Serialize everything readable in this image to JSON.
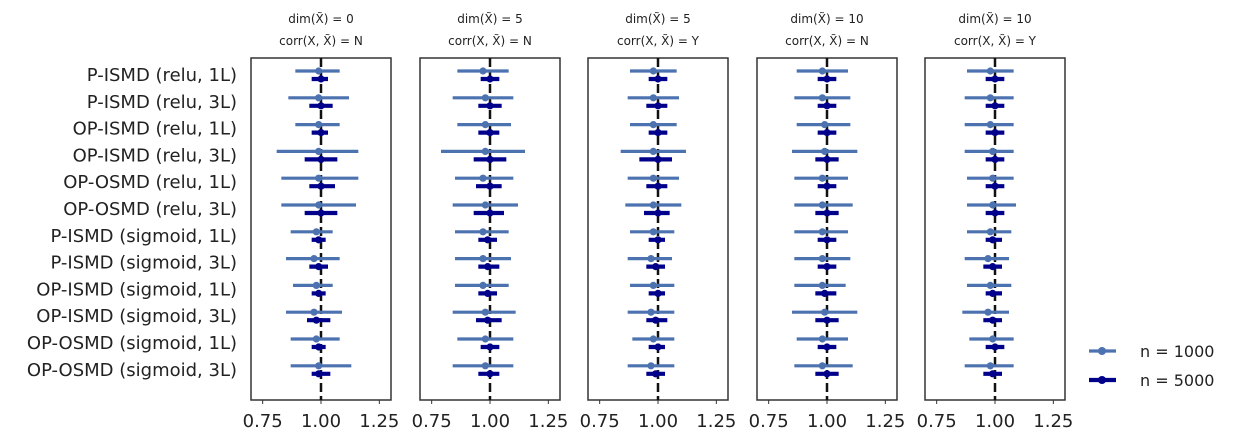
{
  "chart_data": {
    "type": "errorbar",
    "categories": [
      "P-ISMD (relu, 1L)",
      "P-ISMD (relu, 3L)",
      "OP-ISMD (relu, 1L)",
      "OP-ISMD (relu, 3L)",
      "OP-OSMD (relu, 1L)",
      "OP-OSMD (relu, 3L)",
      "P-ISMD (sigmoid, 1L)",
      "P-ISMD (sigmoid, 3L)",
      "OP-ISMD (sigmoid, 1L)",
      "OP-ISMD (sigmoid, 3L)",
      "OP-OSMD (sigmoid, 1L)",
      "OP-OSMD (sigmoid, 3L)"
    ],
    "x_ticks": [
      "0.75",
      "1.00",
      "1.25"
    ],
    "xlim": [
      0.7,
      1.3
    ],
    "reference_line": 1.0,
    "legend": {
      "placement": "right",
      "entries": [
        {
          "label": "n = 1000",
          "color": "#4c72b0"
        },
        {
          "label": "n = 5000",
          "color": "#00008b"
        }
      ]
    },
    "panels": [
      {
        "title_line1": "dim(X̃) = 0",
        "title_line2": "corr(X, X̃) = N",
        "series": [
          {
            "name": "n = 1000",
            "color": "#4c72b0",
            "mean": [
              0.99,
              0.99,
              0.99,
              0.99,
              0.99,
              0.99,
              0.98,
              0.97,
              0.98,
              0.97,
              0.98,
              0.99
            ],
            "low": [
              0.89,
              0.86,
              0.89,
              0.81,
              0.83,
              0.83,
              0.87,
              0.85,
              0.88,
              0.85,
              0.87,
              0.87
            ],
            "high": [
              1.08,
              1.12,
              1.08,
              1.16,
              1.16,
              1.15,
              1.05,
              1.08,
              1.05,
              1.09,
              1.08,
              1.13
            ]
          },
          {
            "name": "n = 5000",
            "color": "#00008b",
            "mean": [
              1.0,
              1.0,
              1.0,
              1.0,
              1.0,
              1.0,
              0.99,
              0.99,
              0.99,
              0.98,
              0.99,
              0.99
            ],
            "low": [
              0.96,
              0.95,
              0.96,
              0.93,
              0.95,
              0.93,
              0.96,
              0.95,
              0.96,
              0.94,
              0.96,
              0.96
            ],
            "high": [
              1.03,
              1.05,
              1.03,
              1.07,
              1.06,
              1.07,
              1.02,
              1.03,
              1.02,
              1.04,
              1.02,
              1.04
            ]
          }
        ]
      },
      {
        "title_line1": "dim(X̃) = 5",
        "title_line2": "corr(X, X̃) = N",
        "series": [
          {
            "name": "n = 1000",
            "color": "#4c72b0",
            "mean": [
              0.97,
              0.98,
              0.98,
              0.98,
              0.97,
              0.98,
              0.97,
              0.97,
              0.97,
              0.98,
              0.98,
              0.98
            ],
            "low": [
              0.86,
              0.84,
              0.86,
              0.79,
              0.85,
              0.84,
              0.85,
              0.85,
              0.85,
              0.84,
              0.86,
              0.84
            ],
            "high": [
              1.08,
              1.1,
              1.09,
              1.15,
              1.1,
              1.12,
              1.08,
              1.09,
              1.08,
              1.11,
              1.1,
              1.1
            ]
          },
          {
            "name": "n = 5000",
            "color": "#00008b",
            "mean": [
              1.0,
              1.0,
              1.0,
              1.0,
              1.0,
              1.0,
              0.99,
              0.99,
              0.99,
              0.99,
              1.0,
              1.0
            ],
            "low": [
              0.96,
              0.95,
              0.95,
              0.93,
              0.94,
              0.93,
              0.95,
              0.95,
              0.95,
              0.94,
              0.96,
              0.95
            ],
            "high": [
              1.04,
              1.05,
              1.04,
              1.07,
              1.05,
              1.06,
              1.03,
              1.04,
              1.03,
              1.05,
              1.04,
              1.04
            ]
          }
        ]
      },
      {
        "title_line1": "dim(X̃) = 5",
        "title_line2": "corr(X, X̃) = Y",
        "series": [
          {
            "name": "n = 1000",
            "color": "#4c72b0",
            "mean": [
              0.98,
              0.98,
              0.98,
              0.98,
              0.98,
              0.98,
              0.98,
              0.97,
              0.98,
              0.97,
              0.98,
              0.97
            ],
            "low": [
              0.88,
              0.87,
              0.88,
              0.84,
              0.87,
              0.86,
              0.88,
              0.87,
              0.88,
              0.87,
              0.89,
              0.87
            ],
            "high": [
              1.08,
              1.09,
              1.08,
              1.12,
              1.09,
              1.1,
              1.07,
              1.06,
              1.07,
              1.07,
              1.07,
              1.07
            ]
          },
          {
            "name": "n = 5000",
            "color": "#00008b",
            "mean": [
              1.0,
              1.0,
              1.0,
              1.0,
              1.0,
              1.0,
              1.0,
              0.99,
              1.0,
              0.99,
              1.0,
              0.99
            ],
            "low": [
              0.96,
              0.95,
              0.96,
              0.92,
              0.95,
              0.94,
              0.96,
              0.95,
              0.96,
              0.95,
              0.96,
              0.95
            ],
            "high": [
              1.04,
              1.04,
              1.04,
              1.06,
              1.04,
              1.05,
              1.03,
              1.03,
              1.03,
              1.04,
              1.03,
              1.03
            ]
          }
        ]
      },
      {
        "title_line1": "dim(X̃) = 10",
        "title_line2": "corr(X, X̃) = N",
        "series": [
          {
            "name": "n = 1000",
            "color": "#4c72b0",
            "mean": [
              0.98,
              0.98,
              0.99,
              0.99,
              0.98,
              0.98,
              0.98,
              0.98,
              0.98,
              0.99,
              0.98,
              0.98
            ],
            "low": [
              0.87,
              0.86,
              0.87,
              0.85,
              0.86,
              0.86,
              0.86,
              0.86,
              0.86,
              0.85,
              0.87,
              0.86
            ],
            "high": [
              1.09,
              1.1,
              1.1,
              1.13,
              1.09,
              1.11,
              1.09,
              1.1,
              1.08,
              1.13,
              1.09,
              1.11
            ]
          },
          {
            "name": "n = 5000",
            "color": "#00008b",
            "mean": [
              1.0,
              1.0,
              1.0,
              1.0,
              1.0,
              1.0,
              1.0,
              1.0,
              0.99,
              1.0,
              1.0,
              1.0
            ],
            "low": [
              0.96,
              0.96,
              0.96,
              0.95,
              0.96,
              0.95,
              0.96,
              0.96,
              0.95,
              0.95,
              0.96,
              0.95
            ],
            "high": [
              1.04,
              1.04,
              1.04,
              1.05,
              1.04,
              1.05,
              1.04,
              1.04,
              1.04,
              1.05,
              1.04,
              1.05
            ]
          }
        ]
      },
      {
        "title_line1": "dim(X̃) = 10",
        "title_line2": "corr(X, X̃) = Y",
        "series": [
          {
            "name": "n = 1000",
            "color": "#4c72b0",
            "mean": [
              0.98,
              0.98,
              0.98,
              0.99,
              0.99,
              0.99,
              0.98,
              0.97,
              0.98,
              0.97,
              0.99,
              0.98
            ],
            "low": [
              0.88,
              0.87,
              0.87,
              0.87,
              0.88,
              0.88,
              0.88,
              0.87,
              0.88,
              0.86,
              0.89,
              0.87
            ],
            "high": [
              1.08,
              1.08,
              1.08,
              1.08,
              1.08,
              1.09,
              1.07,
              1.06,
              1.07,
              1.06,
              1.08,
              1.08
            ]
          },
          {
            "name": "n = 5000",
            "color": "#00008b",
            "mean": [
              1.0,
              1.0,
              1.0,
              1.0,
              1.0,
              1.0,
              0.99,
              0.99,
              0.99,
              0.99,
              1.0,
              0.99
            ],
            "low": [
              0.96,
              0.96,
              0.96,
              0.96,
              0.96,
              0.96,
              0.96,
              0.95,
              0.96,
              0.95,
              0.96,
              0.95
            ],
            "high": [
              1.04,
              1.04,
              1.04,
              1.04,
              1.04,
              1.04,
              1.03,
              1.03,
              1.03,
              1.03,
              1.04,
              1.03
            ]
          }
        ]
      }
    ]
  }
}
